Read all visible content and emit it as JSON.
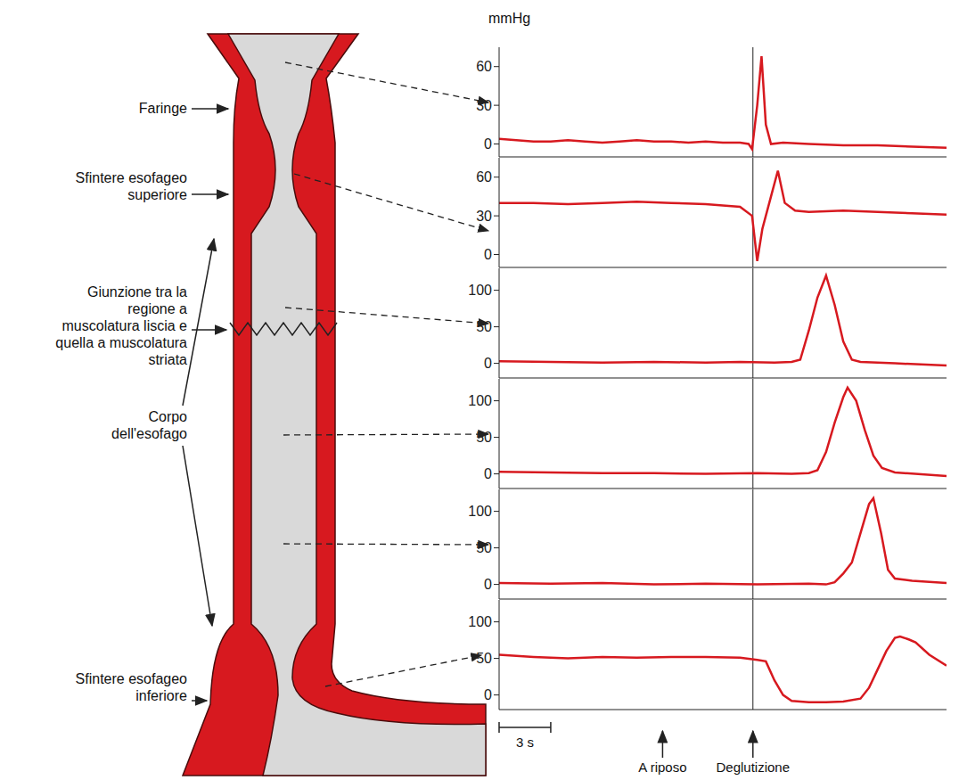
{
  "diagram": {
    "labels": [
      "Faringe",
      "Sfintere esofageo superiore",
      "Giunzione tra la regione a muscolatura liscia e quella a muscolatura striata",
      "Corpo dell'esofago",
      "Sfintere esofageo inferiore"
    ]
  },
  "chart_data": [
    {
      "type": "line",
      "ylabel": "mmHg",
      "color": "#d7191f",
      "tick_labels": "y",
      "xlim": [
        0,
        26
      ],
      "ylim": [
        -10,
        75
      ],
      "yticks": [
        0,
        30,
        60
      ],
      "reference_x": 14.75,
      "x": [
        0,
        1,
        2,
        3,
        4,
        5,
        6,
        7,
        8,
        9,
        10,
        11,
        12,
        13,
        14,
        14.5,
        14.7,
        15.0,
        15.25,
        15.5,
        15.8,
        16.5,
        18,
        20,
        22,
        24,
        26
      ],
      "values": [
        4,
        3,
        2,
        2,
        3,
        2,
        1,
        2,
        3,
        2,
        2,
        1,
        2,
        1,
        1,
        0,
        -4,
        30,
        68,
        15,
        0,
        1,
        0,
        -1,
        -1,
        -2,
        -3
      ]
    },
    {
      "type": "line",
      "color": "#d7191f",
      "tick_labels": "y",
      "xlim": [
        0,
        26
      ],
      "ylim": [
        -10,
        75
      ],
      "yticks": [
        0,
        30,
        60
      ],
      "reference_x": 14.75,
      "x": [
        0,
        2,
        4,
        6,
        8,
        10,
        12,
        13,
        14,
        14.7,
        15.0,
        15.3,
        15.8,
        16.2,
        16.6,
        17.2,
        18,
        20,
        22,
        24,
        26
      ],
      "values": [
        40,
        40,
        39,
        40,
        41,
        40,
        39,
        38,
        37,
        30,
        -5,
        20,
        45,
        65,
        40,
        34,
        33,
        34,
        33,
        32,
        31
      ]
    },
    {
      "type": "line",
      "color": "#d7191f",
      "tick_labels": "y",
      "xlim": [
        0,
        26
      ],
      "ylim": [
        -20,
        130
      ],
      "yticks": [
        0,
        50,
        100
      ],
      "reference_x": 14.75,
      "x": [
        0,
        3,
        6,
        9,
        12,
        14,
        16,
        17,
        17.5,
        18,
        18.5,
        19,
        19.5,
        20,
        20.5,
        21,
        23,
        26
      ],
      "values": [
        3,
        2,
        1,
        2,
        1,
        2,
        1,
        2,
        5,
        45,
        90,
        120,
        80,
        30,
        5,
        2,
        0,
        -3
      ]
    },
    {
      "type": "line",
      "color": "#d7191f",
      "tick_labels": "y",
      "xlim": [
        0,
        26
      ],
      "ylim": [
        -20,
        130
      ],
      "yticks": [
        0,
        50,
        100
      ],
      "reference_x": 14.75,
      "x": [
        0,
        3,
        6,
        9,
        12,
        15,
        17,
        18,
        18.5,
        19,
        19.5,
        20,
        20.25,
        20.75,
        21.25,
        21.75,
        22.25,
        23,
        26
      ],
      "values": [
        3,
        2,
        1,
        1,
        0,
        1,
        0,
        1,
        5,
        30,
        70,
        105,
        118,
        100,
        60,
        25,
        8,
        2,
        -3
      ]
    },
    {
      "type": "line",
      "color": "#d7191f",
      "tick_labels": "y",
      "xlim": [
        0,
        26
      ],
      "ylim": [
        -20,
        130
      ],
      "yticks": [
        0,
        50,
        100
      ],
      "reference_x": 14.75,
      "x": [
        0,
        3,
        6,
        9,
        12,
        15,
        18,
        19,
        19.5,
        20,
        20.5,
        21,
        21.5,
        21.75,
        22.2,
        22.6,
        23,
        24,
        26
      ],
      "values": [
        2,
        1,
        2,
        0,
        1,
        0,
        1,
        0,
        3,
        15,
        30,
        70,
        110,
        118,
        70,
        20,
        8,
        5,
        2
      ]
    },
    {
      "type": "line",
      "color": "#d7191f",
      "tick_labels": "y",
      "xlim": [
        0,
        26
      ],
      "ylim": [
        -20,
        130
      ],
      "yticks": [
        0,
        50,
        100
      ],
      "reference_x": 14.75,
      "x": [
        0,
        2,
        4,
        6,
        8,
        10,
        12,
        14,
        15,
        15.5,
        16,
        16.5,
        17,
        18,
        19,
        20,
        21,
        21.5,
        22,
        22.5,
        23,
        23.3,
        23.8,
        24.2,
        25,
        26
      ],
      "values": [
        55,
        52,
        50,
        52,
        51,
        52,
        52,
        51,
        48,
        46,
        20,
        0,
        -8,
        -10,
        -10,
        -9,
        -5,
        10,
        35,
        60,
        78,
        80,
        76,
        72,
        55,
        40
      ]
    }
  ],
  "annotations": {
    "scale_bar": {
      "label": "3 s",
      "x": 0,
      "length": 3
    },
    "arrows": [
      {
        "text": "A riposo",
        "x": 9.5
      },
      {
        "text": "Deglutizione",
        "x": 14.75
      }
    ]
  }
}
